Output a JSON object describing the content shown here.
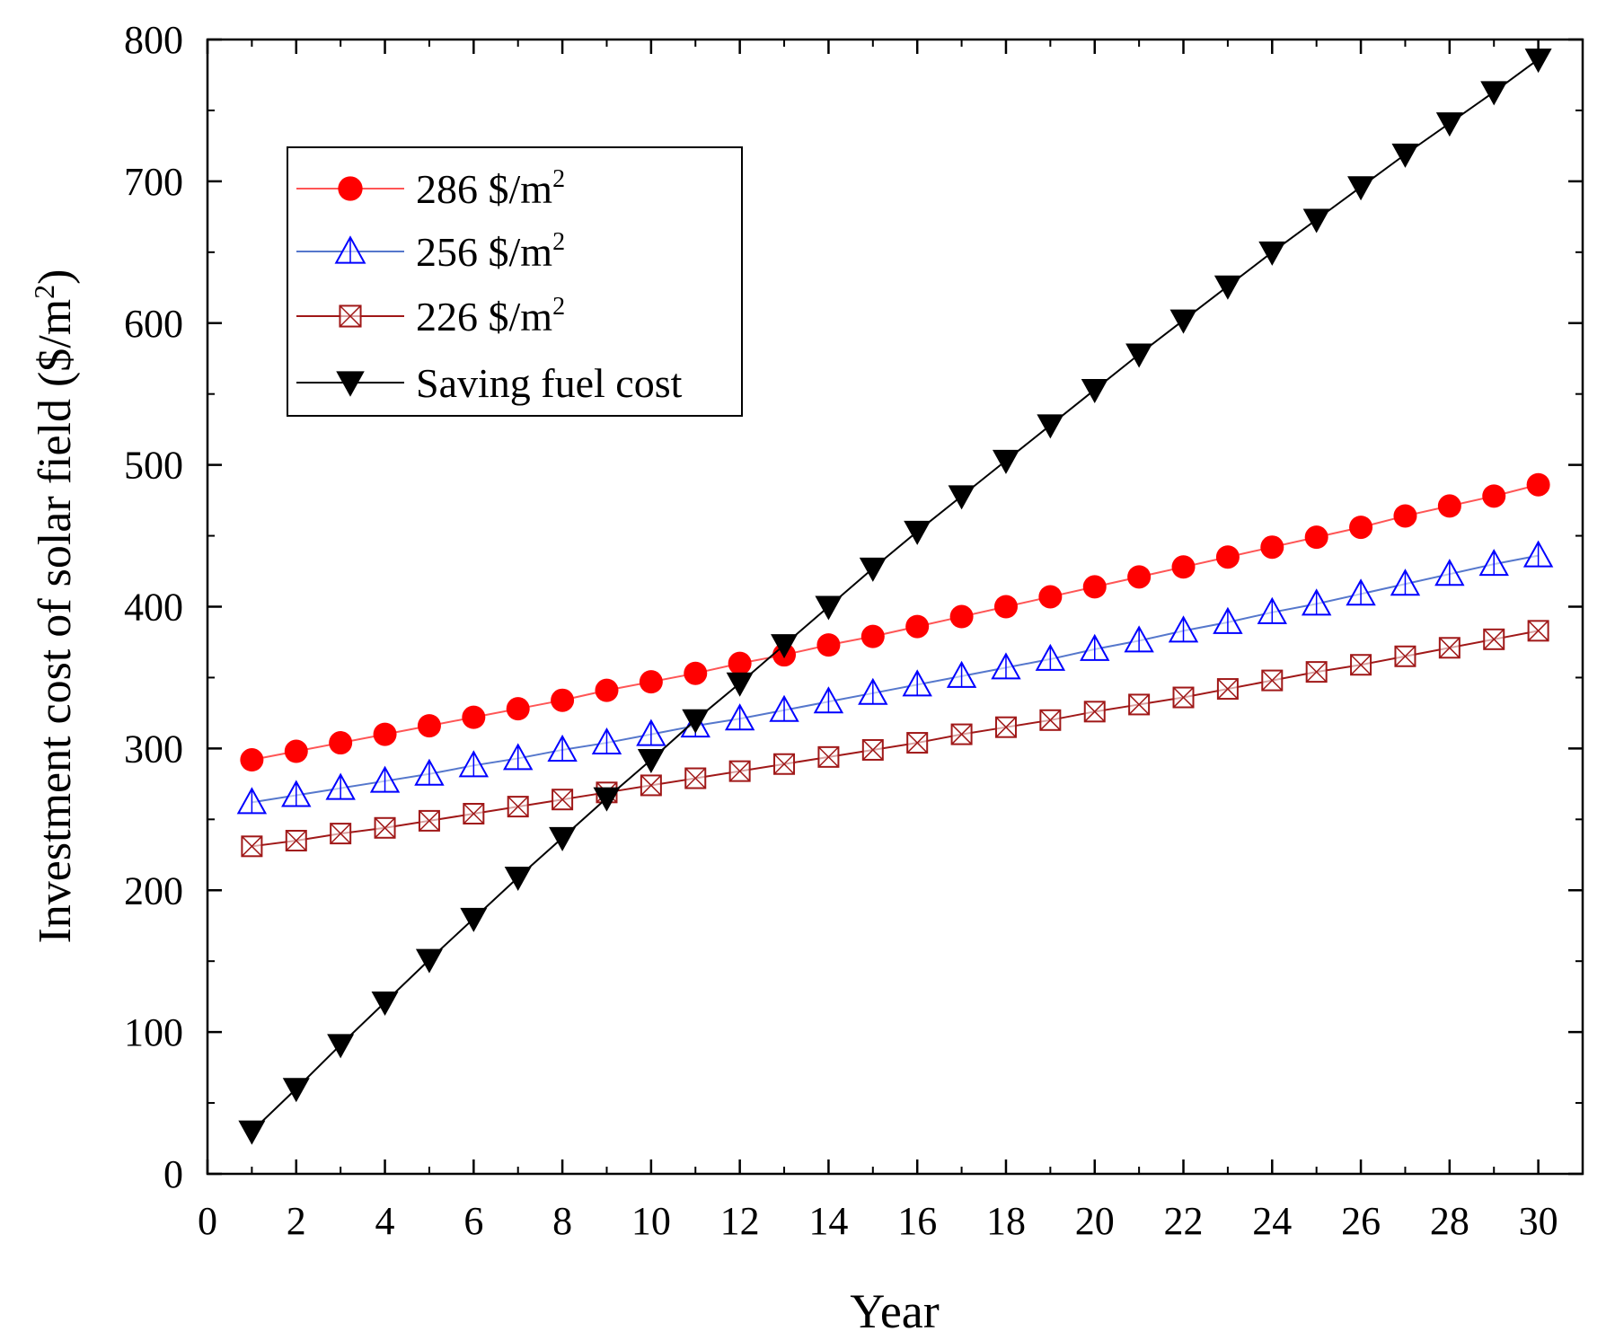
{
  "chart_data": {
    "type": "line",
    "title": "",
    "xlabel": "Year",
    "ylabel": "Investment cost of solar field ($/m",
    "ylabel_sup": "2",
    "ylabel_tail": ")",
    "xlim": [
      0,
      31
    ],
    "ylim": [
      0,
      800
    ],
    "xticks": [
      0,
      2,
      4,
      6,
      8,
      10,
      12,
      14,
      16,
      18,
      20,
      22,
      24,
      26,
      28,
      30
    ],
    "yticks": [
      0,
      100,
      200,
      300,
      400,
      500,
      600,
      700,
      800
    ],
    "grid": false,
    "legend_position": "top-left",
    "x": [
      1,
      2,
      3,
      4,
      5,
      6,
      7,
      8,
      9,
      10,
      11,
      12,
      13,
      14,
      15,
      16,
      17,
      18,
      19,
      20,
      21,
      22,
      23,
      24,
      25,
      26,
      27,
      28,
      29,
      30
    ],
    "series": [
      {
        "name": "286 $/m",
        "name_sup": "2",
        "color": "#ff0000",
        "line_color": "#ff5555",
        "marker": "filled-circle",
        "values": [
          292,
          298,
          304,
          310,
          316,
          322,
          328,
          334,
          341,
          347,
          353,
          360,
          366,
          373,
          379,
          386,
          393,
          400,
          407,
          414,
          421,
          428,
          435,
          442,
          449,
          456,
          464,
          471,
          478,
          486
        ]
      },
      {
        "name": "256 $/m",
        "name_sup": "2",
        "color": "#0000ff",
        "line_color": "#5577cc",
        "marker": "open-triangle-up",
        "values": [
          262,
          267,
          272,
          277,
          282,
          288,
          293,
          299,
          304,
          310,
          316,
          321,
          327,
          333,
          339,
          345,
          351,
          357,
          363,
          370,
          376,
          383,
          389,
          396,
          402,
          409,
          416,
          423,
          430,
          436
        ]
      },
      {
        "name": "226 $/m",
        "name_sup": "2",
        "color": "#a01818",
        "line_color": "#a01818",
        "marker": "open-square-x",
        "values": [
          231,
          235,
          240,
          244,
          249,
          254,
          259,
          264,
          269,
          274,
          279,
          284,
          289,
          294,
          299,
          304,
          310,
          315,
          320,
          326,
          331,
          336,
          342,
          348,
          354,
          359,
          365,
          371,
          377,
          383
        ]
      },
      {
        "name": "Saving fuel cost",
        "name_sup": "",
        "color": "#000000",
        "line_color": "#000000",
        "marker": "filled-triangle-down",
        "values": [
          30,
          60,
          91,
          121,
          151,
          180,
          209,
          237,
          265,
          292,
          320,
          346,
          373,
          400,
          427,
          453,
          478,
          503,
          528,
          553,
          578,
          602,
          626,
          650,
          673,
          696,
          719,
          741,
          763,
          786
        ]
      }
    ]
  }
}
